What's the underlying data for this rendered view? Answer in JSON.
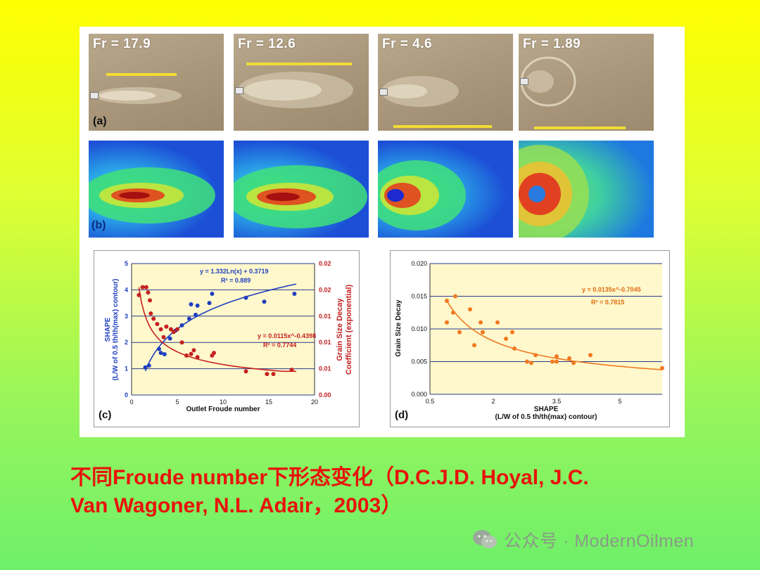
{
  "figure": {
    "photos": [
      {
        "label": "Fr = 17.9"
      },
      {
        "label": "Fr = 12.6"
      },
      {
        "label": "Fr = 4.6"
      },
      {
        "label": "Fr = 1.89"
      }
    ],
    "photo_panel_tag": "(a)",
    "heatmap_panel_tag": "(b)"
  },
  "chart_data": [
    {
      "type": "scatter",
      "panel": "(c)",
      "xlabel": "Outlet Froude number",
      "ylabel_left": "SHAPE\n(L/W of 0.5 th/th(max) contour)",
      "ylabel_right": "Grain Size Decay\nCoefficient (exponential)",
      "xlim": [
        0,
        20
      ],
      "ylim_left": [
        0,
        5
      ],
      "ylim_right": [
        0.0,
        0.025
      ],
      "xticks": [
        "0",
        "5",
        "10",
        "15",
        "20"
      ],
      "yticks_left": [
        "0",
        "1",
        "2",
        "3",
        "4",
        "5"
      ],
      "yticks_right": [
        "0.00",
        "0.01",
        "0.01",
        "0.01",
        "0.02",
        "0.02"
      ],
      "grid": true,
      "series": [
        {
          "axis": "left",
          "color": "#1f3fbf",
          "points": [
            [
              1.5,
              1.05
            ],
            [
              1.9,
              1.12
            ],
            [
              3.0,
              1.75
            ],
            [
              3.2,
              1.6
            ],
            [
              3.6,
              1.55
            ],
            [
              4.2,
              2.15
            ],
            [
              4.8,
              2.45
            ],
            [
              5.5,
              2.65
            ],
            [
              6.3,
              2.9
            ],
            [
              6.5,
              3.45
            ],
            [
              7.0,
              3.05
            ],
            [
              7.2,
              3.4
            ],
            [
              8.5,
              3.5
            ],
            [
              8.8,
              3.85
            ],
            [
              12.5,
              3.7
            ],
            [
              14.5,
              3.55
            ],
            [
              17.8,
              3.85
            ]
          ],
          "fit_label": "y = 1.332Ln(x) + 0.3719",
          "r2_label": "R² = 0.889"
        },
        {
          "axis": "right",
          "color": "#c62020",
          "points": [
            [
              0.8,
              0.019
            ],
            [
              1.2,
              0.0205
            ],
            [
              1.6,
              0.0205
            ],
            [
              1.8,
              0.0195
            ],
            [
              2.0,
              0.018
            ],
            [
              2.1,
              0.0155
            ],
            [
              2.4,
              0.0145
            ],
            [
              2.8,
              0.0135
            ],
            [
              3.2,
              0.0125
            ],
            [
              3.5,
              0.011
            ],
            [
              3.8,
              0.013
            ],
            [
              4.3,
              0.0125
            ],
            [
              4.6,
              0.012
            ],
            [
              5.0,
              0.0125
            ],
            [
              5.5,
              0.01
            ],
            [
              6.0,
              0.0075
            ],
            [
              6.5,
              0.0078
            ],
            [
              6.8,
              0.0085
            ],
            [
              7.2,
              0.0072
            ],
            [
              8.8,
              0.0075
            ],
            [
              9.0,
              0.008
            ],
            [
              12.5,
              0.0045
            ],
            [
              14.8,
              0.004
            ],
            [
              15.5,
              0.004
            ],
            [
              17.5,
              0.0048
            ]
          ],
          "fit_label": "y = 0.0115x^-0.4398",
          "r2_label": "R² = 0.7744"
        }
      ]
    },
    {
      "type": "scatter",
      "panel": "(d)",
      "xlabel": "SHAPE\n(L/W of 0.5 th/th(max) contour)",
      "ylabel": "Grain Size Decay",
      "xlim": [
        0.5,
        6.0
      ],
      "ylim": [
        0.0,
        0.02
      ],
      "xticks": [
        "0.5",
        "2",
        "3.5",
        "5"
      ],
      "yticks": [
        "0.000",
        "0.005",
        "0.010",
        "0.015",
        "0.020"
      ],
      "grid": true,
      "series": [
        {
          "color": "#f07820",
          "points": [
            [
              0.9,
              0.0143
            ],
            [
              0.9,
              0.011
            ],
            [
              1.05,
              0.0125
            ],
            [
              1.1,
              0.015
            ],
            [
              1.2,
              0.0095
            ],
            [
              1.45,
              0.013
            ],
            [
              1.55,
              0.0075
            ],
            [
              1.7,
              0.011
            ],
            [
              1.75,
              0.0095
            ],
            [
              2.1,
              0.011
            ],
            [
              2.3,
              0.0085
            ],
            [
              2.45,
              0.0095
            ],
            [
              2.5,
              0.007
            ],
            [
              2.8,
              0.005
            ],
            [
              2.9,
              0.0048
            ],
            [
              3.0,
              0.006
            ],
            [
              3.4,
              0.005
            ],
            [
              3.5,
              0.0058
            ],
            [
              3.5,
              0.005
            ],
            [
              3.8,
              0.0055
            ],
            [
              3.9,
              0.0048
            ],
            [
              4.3,
              0.006
            ],
            [
              6.0,
              0.004
            ]
          ],
          "fit_label": "y = 0.0135x^-0.7045",
          "r2_label": "R² = 0.7815"
        }
      ]
    }
  ],
  "caption": {
    "line1": "不同Froude number下形态变化（D.C.J.D. Hoyal, J.C.",
    "line2": "Van Wagoner, N.L. Adair，2003）"
  },
  "watermark": {
    "text": "公众号 · ModernOilmen",
    "icon": "wechat-icon"
  },
  "colors": {
    "blue_series": "#1f3fbf",
    "red_series": "#c62020",
    "orange_series": "#f07820",
    "caption": "#e8130c"
  }
}
